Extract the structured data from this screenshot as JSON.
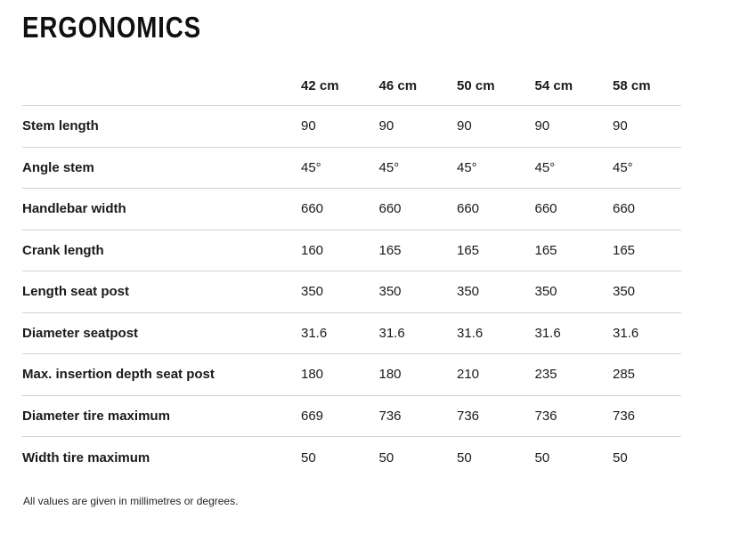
{
  "page": {
    "title": "ERGONOMICS",
    "footnote": "All values are given in millimetres or degrees."
  },
  "table": {
    "columns": [
      "42 cm",
      "46 cm",
      "50 cm",
      "54 cm",
      "58 cm"
    ],
    "rows": [
      {
        "label": "Stem length",
        "values": [
          "90",
          "90",
          "90",
          "90",
          "90"
        ]
      },
      {
        "label": "Angle stem",
        "values": [
          "45°",
          "45°",
          "45°",
          "45°",
          "45°"
        ]
      },
      {
        "label": "Handlebar width",
        "values": [
          "660",
          "660",
          "660",
          "660",
          "660"
        ]
      },
      {
        "label": "Crank length",
        "values": [
          "160",
          "165",
          "165",
          "165",
          "165"
        ]
      },
      {
        "label": "Length seat post",
        "values": [
          "350",
          "350",
          "350",
          "350",
          "350"
        ]
      },
      {
        "label": "Diameter seatpost",
        "values": [
          "31.6",
          "31.6",
          "31.6",
          "31.6",
          "31.6"
        ]
      },
      {
        "label": "Max. insertion depth seat post",
        "values": [
          "180",
          "180",
          "210",
          "235",
          "285"
        ]
      },
      {
        "label": "Diameter tire maximum",
        "values": [
          "669",
          "736",
          "736",
          "736",
          "736"
        ]
      },
      {
        "label": "Width tire maximum",
        "values": [
          "50",
          "50",
          "50",
          "50",
          "50"
        ]
      }
    ]
  },
  "colors": {
    "text": "#1a1a1a",
    "title": "#101010",
    "divider": "#d2d2d2",
    "background": "#ffffff"
  }
}
